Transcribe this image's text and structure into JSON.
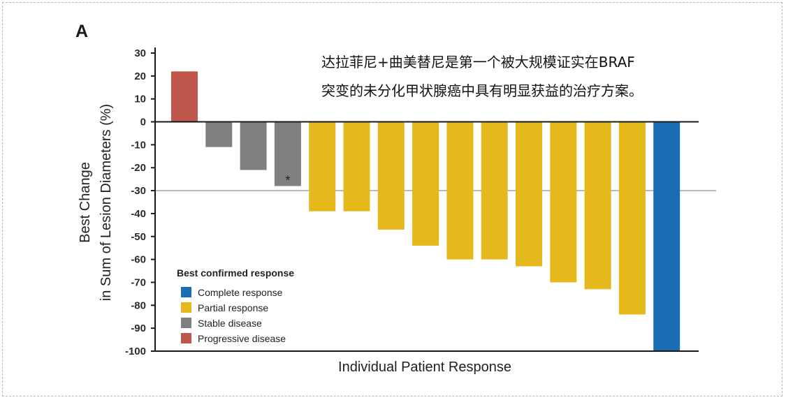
{
  "panel_label": "A",
  "annotation_lines": [
    "达拉菲尼+曲美替尼是第一个被大规模证实在BRAF",
    "突变的未分化甲状腺癌中具有明显获益的治疗方案。"
  ],
  "chart_data": {
    "type": "bar",
    "title": "",
    "xlabel": "Individual Patient Response",
    "ylabel_lines": [
      "Best Change",
      "in Sum of Lesion Diameters (%)"
    ],
    "ylim": [
      -100,
      30
    ],
    "yticks": [
      30,
      20,
      10,
      0,
      -10,
      -20,
      -30,
      -40,
      -50,
      -60,
      -70,
      -80,
      -90,
      -100
    ],
    "reference_line": -30,
    "values": [
      22,
      -11,
      -21,
      -28,
      -39,
      -39,
      -47,
      -54,
      -60,
      -60,
      -63,
      -70,
      -73,
      -84,
      -100
    ],
    "response": [
      "PD",
      "SD",
      "SD",
      "SD",
      "PR",
      "PR",
      "PR",
      "PR",
      "PR",
      "PR",
      "PR",
      "PR",
      "PR",
      "PR",
      "CR"
    ],
    "marked_index": 3,
    "marker_symbol": "*",
    "colors": {
      "CR": "#1a6db3",
      "PR": "#e5b81c",
      "SD": "#808080",
      "PD": "#c0574d"
    },
    "legend": {
      "title": "Best confirmed response",
      "placement": "bottom-left",
      "items": [
        {
          "key": "CR",
          "label": "Complete response"
        },
        {
          "key": "PR",
          "label": "Partial response"
        },
        {
          "key": "SD",
          "label": "Stable disease"
        },
        {
          "key": "PD",
          "label": "Progressive disease"
        }
      ]
    }
  }
}
